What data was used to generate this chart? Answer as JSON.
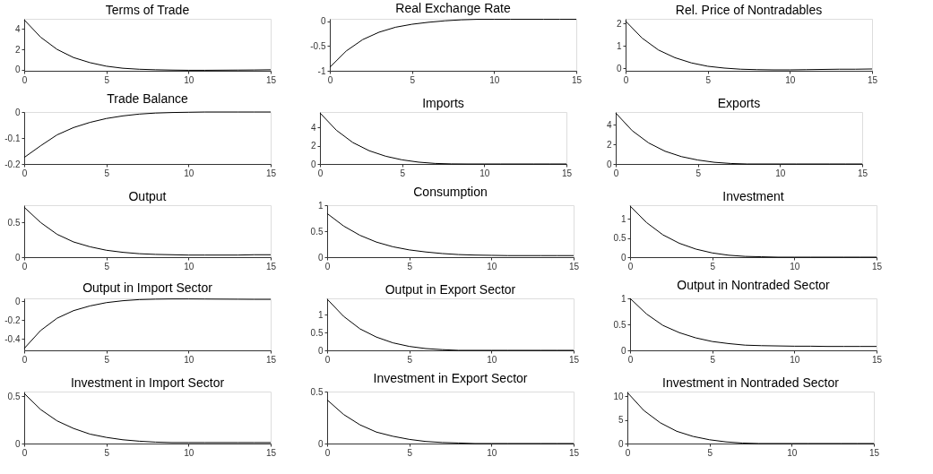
{
  "chart_data": [
    {
      "type": "line",
      "title": "Terms of Trade",
      "x": [
        0,
        1,
        2,
        3,
        4,
        5,
        6,
        7,
        8,
        9,
        10,
        11,
        12,
        13,
        14,
        15
      ],
      "values": [
        4.9,
        3.2,
        2.0,
        1.2,
        0.7,
        0.35,
        0.15,
        0.05,
        0,
        -0.03,
        -0.05,
        -0.05,
        -0.04,
        -0.03,
        -0.02,
        0
      ],
      "color": "#000000",
      "xlim": [
        0,
        15
      ],
      "xticks": [
        0,
        5,
        10,
        15
      ],
      "ylim": [
        -0.1,
        5
      ],
      "yticks": [
        0,
        2,
        4
      ]
    },
    {
      "type": "line",
      "title": "Real Exchange Rate",
      "x": [
        0,
        1,
        2,
        3,
        4,
        5,
        6,
        7,
        8,
        9,
        10,
        11,
        12,
        13,
        14,
        15
      ],
      "values": [
        -0.93,
        -0.6,
        -0.37,
        -0.22,
        -0.12,
        -0.06,
        -0.02,
        0.01,
        0.03,
        0.04,
        0.04,
        0.04,
        0.04,
        0.04,
        0.04,
        0.04
      ],
      "color": "#000000",
      "xlim": [
        0,
        15
      ],
      "xticks": [
        0,
        5,
        10,
        15
      ],
      "ylim": [
        -1,
        0.05
      ],
      "yticks": [
        -1,
        -0.5,
        0
      ]
    },
    {
      "type": "line",
      "title": "Rel. Price of Nontradables",
      "x": [
        0,
        1,
        2,
        3,
        4,
        5,
        6,
        7,
        8,
        9,
        10,
        11,
        12,
        13,
        14,
        15
      ],
      "values": [
        2.1,
        1.35,
        0.82,
        0.48,
        0.25,
        0.1,
        0.02,
        -0.03,
        -0.05,
        -0.06,
        -0.06,
        -0.05,
        -0.04,
        -0.03,
        -0.03,
        -0.02
      ],
      "color": "#000000",
      "xlim": [
        0,
        15
      ],
      "xticks": [
        0,
        5,
        10,
        15
      ],
      "ylim": [
        -0.1,
        2.2
      ],
      "yticks": [
        0,
        1,
        2
      ]
    },
    {
      "type": "line",
      "title": "Trade Balance",
      "x": [
        0,
        1,
        2,
        3,
        4,
        5,
        6,
        7,
        8,
        9,
        10,
        11,
        12,
        13,
        14,
        15
      ],
      "values": [
        -0.175,
        -0.13,
        -0.088,
        -0.06,
        -0.04,
        -0.025,
        -0.015,
        -0.008,
        -0.004,
        -0.002,
        -0.001,
        0,
        0,
        0,
        0,
        0
      ],
      "color": "#000000",
      "xlim": [
        0,
        15
      ],
      "xticks": [
        0,
        5,
        10,
        15
      ],
      "ylim": [
        -0.2,
        0
      ],
      "yticks": [
        -0.2,
        -0.1,
        0
      ]
    },
    {
      "type": "line",
      "title": "Imports",
      "x": [
        0,
        1,
        2,
        3,
        4,
        5,
        6,
        7,
        8,
        9,
        10,
        11,
        12,
        13,
        14,
        15
      ],
      "values": [
        5.6,
        3.7,
        2.35,
        1.45,
        0.85,
        0.45,
        0.2,
        0.06,
        0.01,
        0,
        0,
        0,
        0,
        0,
        0,
        0
      ],
      "color": "#000000",
      "xlim": [
        0,
        15
      ],
      "xticks": [
        0,
        5,
        10,
        15
      ],
      "ylim": [
        0,
        5.7
      ],
      "yticks": [
        0,
        2,
        4
      ]
    },
    {
      "type": "line",
      "title": "Exports",
      "x": [
        0,
        1,
        2,
        3,
        4,
        5,
        6,
        7,
        8,
        9,
        10,
        11,
        12,
        13,
        14,
        15
      ],
      "values": [
        5.2,
        3.4,
        2.15,
        1.3,
        0.75,
        0.4,
        0.17,
        0.05,
        0,
        0,
        0,
        0,
        0,
        0,
        0,
        0
      ],
      "color": "#000000",
      "xlim": [
        0,
        15
      ],
      "xticks": [
        0,
        5,
        10,
        15
      ],
      "ylim": [
        0,
        5.3
      ],
      "yticks": [
        0,
        2,
        4
      ]
    },
    {
      "type": "line",
      "title": "Output",
      "x": [
        0,
        1,
        2,
        3,
        4,
        5,
        6,
        7,
        8,
        9,
        10,
        11,
        12,
        13,
        14,
        15
      ],
      "values": [
        0.72,
        0.5,
        0.33,
        0.22,
        0.15,
        0.1,
        0.07,
        0.05,
        0.04,
        0.035,
        0.03,
        0.03,
        0.03,
        0.03,
        0.035,
        0.035
      ],
      "color": "#000000",
      "xlim": [
        0,
        15
      ],
      "xticks": [
        0,
        5,
        10,
        15
      ],
      "ylim": [
        0,
        0.75
      ],
      "yticks": [
        0,
        0.5
      ]
    },
    {
      "type": "line",
      "title": "Consumption",
      "x": [
        0,
        1,
        2,
        3,
        4,
        5,
        6,
        7,
        8,
        9,
        10,
        11,
        12,
        13,
        14,
        15
      ],
      "values": [
        0.84,
        0.6,
        0.42,
        0.29,
        0.2,
        0.14,
        0.1,
        0.07,
        0.05,
        0.04,
        0.035,
        0.03,
        0.03,
        0.03,
        0.03,
        0.03
      ],
      "color": "#000000",
      "xlim": [
        0,
        15
      ],
      "xticks": [
        0,
        5,
        10,
        15
      ],
      "ylim": [
        0,
        1
      ],
      "yticks": [
        0,
        0.5,
        1
      ]
    },
    {
      "type": "line",
      "title": "Investment",
      "x": [
        0,
        1,
        2,
        3,
        4,
        5,
        6,
        7,
        8,
        9,
        10,
        11,
        12,
        13,
        14,
        15
      ],
      "values": [
        1.33,
        0.9,
        0.58,
        0.36,
        0.21,
        0.11,
        0.05,
        0.02,
        0.01,
        0,
        0,
        0,
        0,
        0,
        0,
        0
      ],
      "color": "#000000",
      "xlim": [
        0,
        15
      ],
      "xticks": [
        0,
        5,
        10,
        15
      ],
      "ylim": [
        0,
        1.35
      ],
      "yticks": [
        0,
        0.5,
        1
      ]
    },
    {
      "type": "line",
      "title": "Output in Import Sector",
      "x": [
        0,
        1,
        2,
        3,
        4,
        5,
        6,
        7,
        8,
        9,
        10,
        11,
        12,
        13,
        14,
        15
      ],
      "values": [
        -0.5,
        -0.31,
        -0.18,
        -0.1,
        -0.05,
        -0.015,
        0.005,
        0.017,
        0.022,
        0.024,
        0.024,
        0.023,
        0.022,
        0.021,
        0.02,
        0.02
      ],
      "color": "#000000",
      "xlim": [
        0,
        15
      ],
      "xticks": [
        0,
        5,
        10,
        15
      ],
      "ylim": [
        -0.52,
        0.03
      ],
      "yticks": [
        -0.4,
        -0.2,
        0
      ]
    },
    {
      "type": "line",
      "title": "Output in Export Sector",
      "x": [
        0,
        1,
        2,
        3,
        4,
        5,
        6,
        7,
        8,
        9,
        10,
        11,
        12,
        13,
        14,
        15
      ],
      "values": [
        1.43,
        0.95,
        0.6,
        0.37,
        0.21,
        0.11,
        0.05,
        0.02,
        0,
        0,
        0,
        0,
        0,
        0,
        0,
        0
      ],
      "color": "#000000",
      "xlim": [
        0,
        15
      ],
      "xticks": [
        0,
        5,
        10,
        15
      ],
      "ylim": [
        0,
        1.45
      ],
      "yticks": [
        0,
        0.5,
        1
      ]
    },
    {
      "type": "line",
      "title": "Output in Nontraded Sector",
      "x": [
        0,
        1,
        2,
        3,
        4,
        5,
        6,
        7,
        8,
        9,
        10,
        11,
        12,
        13,
        14,
        15
      ],
      "values": [
        1.0,
        0.7,
        0.48,
        0.34,
        0.24,
        0.17,
        0.13,
        0.1,
        0.09,
        0.085,
        0.08,
        0.08,
        0.075,
        0.075,
        0.075,
        0.075
      ],
      "color": "#000000",
      "xlim": [
        0,
        15
      ],
      "xticks": [
        0,
        5,
        10,
        15
      ],
      "ylim": [
        0,
        1
      ],
      "yticks": [
        0,
        0.5,
        1
      ]
    },
    {
      "type": "line",
      "title": "Investment in Import Sector",
      "x": [
        0,
        1,
        2,
        3,
        4,
        5,
        6,
        7,
        8,
        9,
        10,
        11,
        12,
        13,
        14,
        15
      ],
      "values": [
        0.53,
        0.36,
        0.24,
        0.16,
        0.1,
        0.065,
        0.04,
        0.025,
        0.015,
        0.01,
        0.01,
        0.01,
        0.01,
        0.01,
        0.01,
        0.01
      ],
      "color": "#000000",
      "xlim": [
        0,
        15
      ],
      "xticks": [
        0,
        5,
        10,
        15
      ],
      "ylim": [
        0,
        0.55
      ],
      "yticks": [
        0,
        0.5
      ]
    },
    {
      "type": "line",
      "title": "Investment in Export Sector",
      "x": [
        0,
        1,
        2,
        3,
        4,
        5,
        6,
        7,
        8,
        9,
        10,
        11,
        12,
        13,
        14,
        15
      ],
      "values": [
        0.42,
        0.28,
        0.18,
        0.11,
        0.07,
        0.04,
        0.02,
        0.01,
        0.005,
        0,
        0,
        0,
        0,
        0,
        0,
        0
      ],
      "color": "#000000",
      "xlim": [
        0,
        15
      ],
      "xticks": [
        0,
        5,
        10,
        15
      ],
      "ylim": [
        0,
        0.5
      ],
      "yticks": [
        0,
        0.5
      ]
    },
    {
      "type": "line",
      "title": "Investment in Nontraded Sector",
      "x": [
        0,
        1,
        2,
        3,
        4,
        5,
        6,
        7,
        8,
        9,
        10,
        11,
        12,
        13,
        14,
        15
      ],
      "values": [
        10.8,
        7.0,
        4.4,
        2.6,
        1.5,
        0.8,
        0.35,
        0.1,
        0,
        0,
        0,
        0,
        0,
        0,
        0,
        0
      ],
      "color": "#000000",
      "xlim": [
        0,
        15
      ],
      "xticks": [
        0,
        5,
        10,
        15
      ],
      "ylim": [
        0,
        11
      ],
      "yticks": [
        0,
        5,
        10
      ]
    }
  ]
}
